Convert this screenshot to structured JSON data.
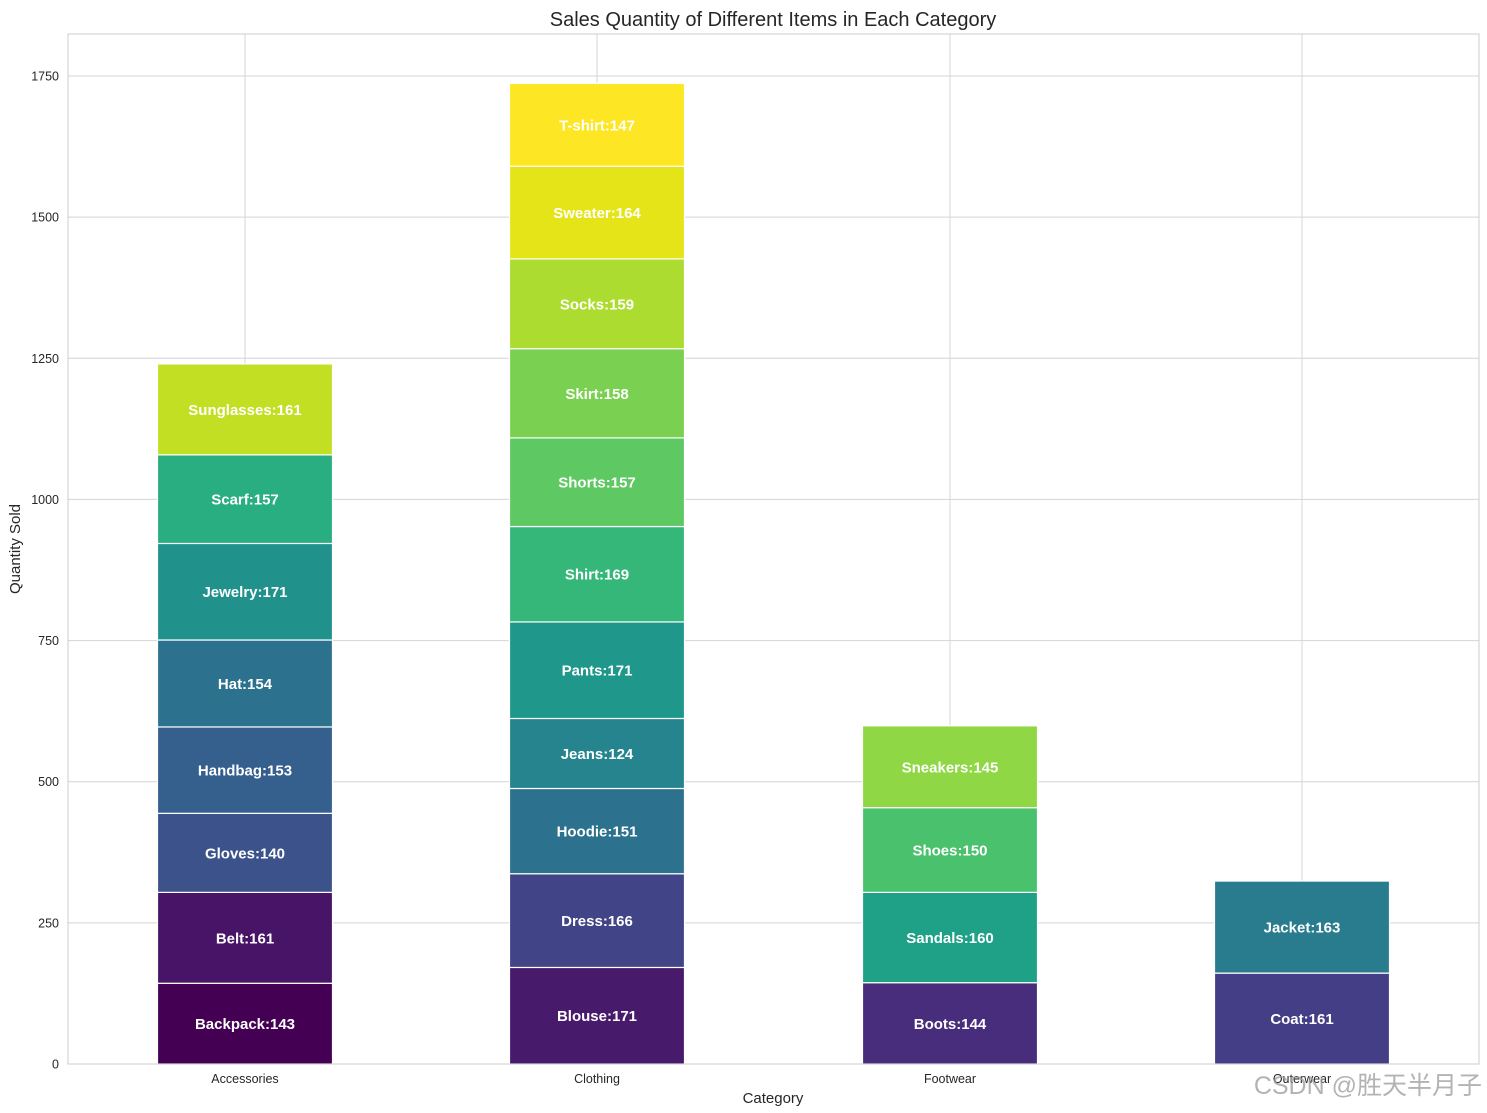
{
  "chart_data": {
    "type": "bar",
    "stacked": true,
    "title": "Sales Quantity of Different Items in Each Category",
    "xlabel": "Category",
    "ylabel": "Quantity Sold",
    "ylim": [
      0,
      1825
    ],
    "yticks": [
      0,
      250,
      500,
      750,
      1000,
      1250,
      1500,
      1750
    ],
    "grid": true,
    "categories": [
      "Accessories",
      "Clothing",
      "Footwear",
      "Outerwear"
    ],
    "stacks": [
      {
        "category": "Accessories",
        "segments": [
          {
            "name": "Backpack",
            "value": 143,
            "label": "Backpack:143",
            "color": "#440154"
          },
          {
            "name": "Belt",
            "value": 161,
            "label": "Belt:161",
            "color": "#481467"
          },
          {
            "name": "Gloves",
            "value": 140,
            "label": "Gloves:140",
            "color": "#3b528b"
          },
          {
            "name": "Handbag",
            "value": 153,
            "label": "Handbag:153",
            "color": "#355f8d"
          },
          {
            "name": "Hat",
            "value": 154,
            "label": "Hat:154",
            "color": "#2c728e"
          },
          {
            "name": "Jewelry",
            "value": 171,
            "label": "Jewelry:171",
            "color": "#21918c"
          },
          {
            "name": "Scarf",
            "value": 157,
            "label": "Scarf:157",
            "color": "#28ae80"
          },
          {
            "name": "Sunglasses",
            "value": 161,
            "label": "Sunglasses:161",
            "color": "#c2df23"
          }
        ]
      },
      {
        "category": "Clothing",
        "segments": [
          {
            "name": "Blouse",
            "value": 171,
            "label": "Blouse:171",
            "color": "#481a6c"
          },
          {
            "name": "Dress",
            "value": 166,
            "label": "Dress:166",
            "color": "#414487"
          },
          {
            "name": "Hoodie",
            "value": 151,
            "label": "Hoodie:151",
            "color": "#2c728e"
          },
          {
            "name": "Jeans",
            "value": 124,
            "label": "Jeans:124",
            "color": "#25848e"
          },
          {
            "name": "Pants",
            "value": 171,
            "label": "Pants:171",
            "color": "#1f988b"
          },
          {
            "name": "Shirt",
            "value": 169,
            "label": "Shirt:169",
            "color": "#35b779"
          },
          {
            "name": "Shorts",
            "value": 157,
            "label": "Shorts:157",
            "color": "#5ec962"
          },
          {
            "name": "Skirt",
            "value": 158,
            "label": "Skirt:158",
            "color": "#7ad151"
          },
          {
            "name": "Socks",
            "value": 159,
            "label": "Socks:159",
            "color": "#addc30"
          },
          {
            "name": "Sweater",
            "value": 164,
            "label": "Sweater:164",
            "color": "#e5e419"
          },
          {
            "name": "T-shirt",
            "value": 147,
            "label": "T-shirt:147",
            "color": "#fde725"
          }
        ]
      },
      {
        "category": "Footwear",
        "segments": [
          {
            "name": "Boots",
            "value": 144,
            "label": "Boots:144",
            "color": "#472d7b"
          },
          {
            "name": "Sandals",
            "value": 160,
            "label": "Sandals:160",
            "color": "#1fa187"
          },
          {
            "name": "Shoes",
            "value": 150,
            "label": "Shoes:150",
            "color": "#4ac16d"
          },
          {
            "name": "Sneakers",
            "value": 145,
            "label": "Sneakers:145",
            "color": "#8fd744"
          }
        ]
      },
      {
        "category": "Outerwear",
        "segments": [
          {
            "name": "Coat",
            "value": 161,
            "label": "Coat:161",
            "color": "#433e85"
          },
          {
            "name": "Jacket",
            "value": 163,
            "label": "Jacket:163",
            "color": "#287c8e"
          }
        ]
      }
    ]
  },
  "watermark": "CSDN @胜天半月子"
}
